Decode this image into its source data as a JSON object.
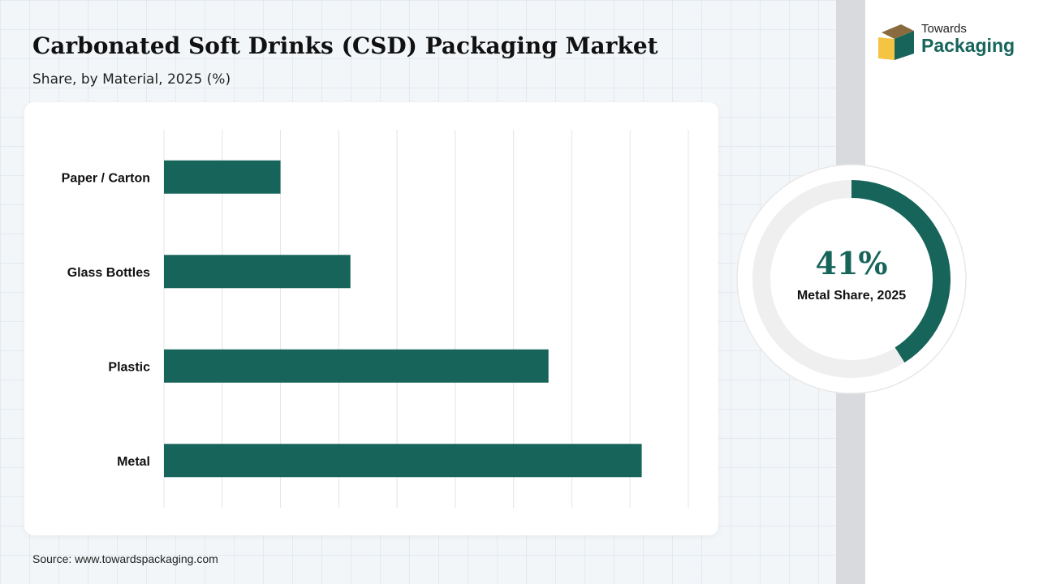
{
  "header": {
    "title": "Carbonated Soft Drinks (CSD) Packaging Market",
    "subtitle": "Share, by Material, 2025 (%)"
  },
  "logo": {
    "line1": "Towards",
    "line2": "Packaging",
    "colors": {
      "box_dark": "#8a6a3f",
      "box_light": "#f6c443",
      "text": "#17655a"
    }
  },
  "chart_data": {
    "type": "bar",
    "orientation": "horizontal",
    "categories": [
      "Paper / Carton",
      "Glass Bottles",
      "Plastic",
      "Metal"
    ],
    "values": [
      10,
      16,
      33,
      41
    ],
    "xlim": [
      0,
      45
    ],
    "grid": true,
    "color": "#17655a"
  },
  "highlight": {
    "value_label": "41%",
    "value": 41,
    "caption": "Metal Share, 2025",
    "ring_color": "#17655a",
    "track_color": "#efefef"
  },
  "footer": {
    "source": "Source: www.towardspackaging.com"
  }
}
